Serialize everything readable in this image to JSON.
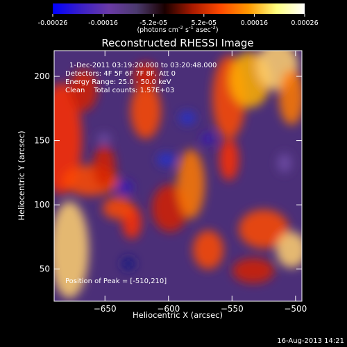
{
  "chart_data": {
    "type": "heatmap",
    "title": "Reconstructed RHESSI Image",
    "xlabel": "Heliocentric X (arcsec)",
    "ylabel": "Heliocentric Y (arcsec)",
    "xlim": [
      -690,
      -495
    ],
    "ylim": [
      25,
      220
    ],
    "x_ticks": [
      -650,
      -600,
      -550,
      -500
    ],
    "y_ticks": [
      50,
      100,
      150,
      200
    ],
    "colorbar": {
      "label_html": "(photons cm<tspan baseline-shift=\"super\" font-size=\"7\">-2</tspan> s<tspan baseline-shift=\"super\" font-size=\"7\">-1</tspan> asec<tspan baseline-shift=\"super\" font-size=\"7\">-2</tspan>)",
      "range": [
        -0.00026,
        0.00026
      ],
      "ticks": [
        "-0.00026",
        "-0.00016",
        "-5.2e-05",
        "5.2e-05",
        "0.00016",
        "0.00026"
      ],
      "colors": [
        "#0000ff",
        "#3a1fc8",
        "#6a3aa6",
        "#4b3a6e",
        "#1a0000",
        "#aa1a00",
        "#ff4a00",
        "#ff9a00",
        "#ffff80",
        "#ffffff"
      ]
    },
    "annotations": [
      "1-Dec-2011 03:19:20.000 to 03:20:48.000",
      "Detectors: 4F 5F 6F 7F 8F, Att 0",
      "Energy Range: 25.0 - 50.0 keV",
      "Clean    Total counts: 1.57E+03"
    ],
    "peak_label": "Position of Peak = [-510,210]",
    "peak": [
      -510,
      210
    ]
  },
  "footer": {
    "date": "16-Aug-2013 14:21"
  }
}
